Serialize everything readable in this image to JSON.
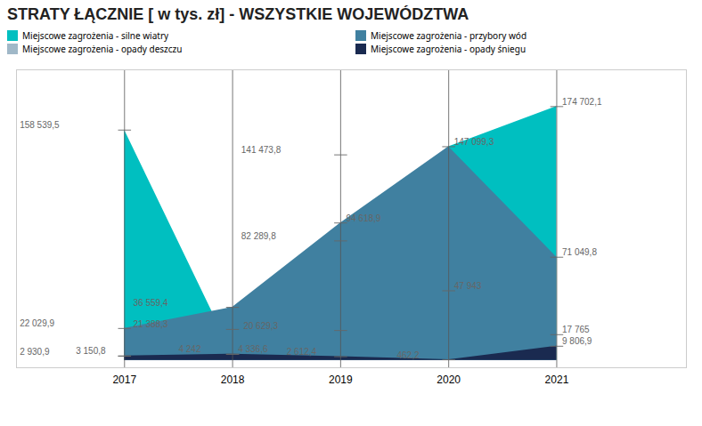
{
  "chart_data": {
    "type": "area",
    "title": "STRATY ŁĄCZNIE [ w tys. zł] - WSZYSTKIE WOJEWÓDZTWA",
    "x": [
      2017,
      2018,
      2019,
      2020,
      2021
    ],
    "xlim": [
      2016.0,
      2022.2
    ],
    "xticks": [
      2017,
      2018,
      2019,
      2020,
      2021
    ],
    "ylim": [
      -5000,
      200000
    ],
    "tick_labels": "x",
    "grid": true,
    "legend": "upper left",
    "stacked": false,
    "series": [
      {
        "name": "Miejscowe zagrożenia - silne wiatry",
        "color": "#00bfc0",
        "values": [
          158539.5,
          4242.0,
          82289.8,
          147099.3,
          174702.1
        ]
      },
      {
        "name": "Miejscowe zagrożenia - opady deszczu",
        "color": "#a0b8c8",
        "values": [
          22029.9,
          21388.3,
          20629.3,
          47943.0,
          17765.0
        ]
      },
      {
        "name": "Miejscowe zagrożenia - przybory wód",
        "color": "#4080a0",
        "values": [
          22029.9,
          36559.4,
          94618.9,
          147099.3,
          71049.8
        ]
      },
      {
        "name": "Miejscowe zagrożenia - opady śniegu",
        "color": "#1a2a50",
        "values": [
          3150.8,
          4336.6,
          2612.4,
          462.2,
          9806.9
        ]
      }
    ],
    "annotations": [
      {
        "x": 2017,
        "y": 158539.5,
        "text": "158 539,5"
      },
      {
        "x": 2017,
        "y": 22029.9,
        "text": "22 029,9"
      },
      {
        "x": 2017,
        "y": 2930.9,
        "text": "2 930,9"
      },
      {
        "x": 2017,
        "y": 3150.8,
        "text": "3 150,8"
      },
      {
        "x": 2018,
        "y": 36559.4,
        "text": "36 559,4"
      },
      {
        "x": 2018,
        "y": 21388.3,
        "text": "21 388,3"
      },
      {
        "x": 2018,
        "y": 4242.0,
        "text": "4 242"
      },
      {
        "x": 2018,
        "y": 4336.6,
        "text": "4 336,6"
      },
      {
        "x": 2019,
        "y": 141473.8,
        "text": "141 473,8"
      },
      {
        "x": 2019,
        "y": 94618.9,
        "text": "94 618,9"
      },
      {
        "x": 2019,
        "y": 82289.8,
        "text": "82 289,8"
      },
      {
        "x": 2019,
        "y": 20629.3,
        "text": "20 629,3"
      },
      {
        "x": 2019,
        "y": 2612.4,
        "text": "2 612,4"
      },
      {
        "x": 2020,
        "y": 147099.3,
        "text": "147 099,3"
      },
      {
        "x": 2020,
        "y": 47943.0,
        "text": "47 943"
      },
      {
        "x": 2020,
        "y": 462.2,
        "text": "462,2"
      },
      {
        "x": 2021,
        "y": 174702.1,
        "text": "174 702,1"
      },
      {
        "x": 2021,
        "y": 71049.8,
        "text": "71 049,8"
      },
      {
        "x": 2021,
        "y": 17765.0,
        "text": "17 765"
      },
      {
        "x": 2021,
        "y": 9806.9,
        "text": "9 806,9"
      }
    ]
  }
}
